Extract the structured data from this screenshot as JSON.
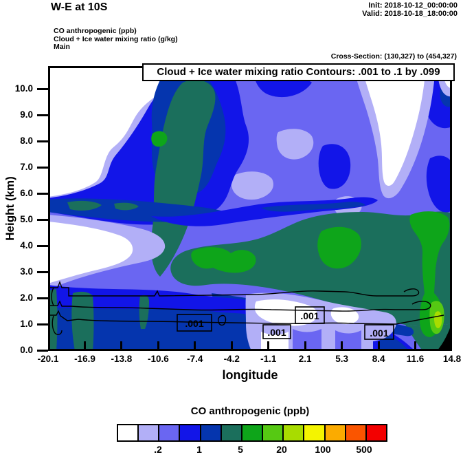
{
  "header": {
    "title": "W-E at 10S",
    "init_line": "Init: 2018-10-12_00:00:00",
    "valid_line": "Valid: 2018-10-18_18:00:00",
    "field_line_1": "CO anthropogenic   (ppb)",
    "field_line_2": "Cloud + Ice water mixing ratio   (g/kg)",
    "field_line_3": "Main",
    "cross_section": "Cross-Section: (130,327) to (454,327)"
  },
  "chart_data": {
    "type": "filled-contour vertical cross-section with line contour overlay",
    "title": "Cloud + Ice water mixing ratio Contours: .001 to .1 by .099",
    "xlabel": "longitude",
    "ylabel": "Height (km)",
    "x_ticks": [
      "-20.1",
      "-16.9",
      "-13.8",
      "-10.6",
      "-7.4",
      "-4.2",
      "-1.1",
      "2.1",
      "5.3",
      "8.4",
      "11.6",
      "14.8"
    ],
    "y_ticks": [
      "0.0",
      "1.0",
      "2.0",
      "3.0",
      "4.0",
      "5.0",
      "6.0",
      "7.0",
      "8.0",
      "9.0",
      "10.0"
    ],
    "xlim": [
      -20.1,
      14.8
    ],
    "ylim_km": [
      0.0,
      10.9
    ],
    "fill_field": "CO anthropogenic (ppb)",
    "line_field": "Cloud + Ice water mixing ratio (g/kg)",
    "line_contour_label": ".001",
    "line_contour_levels_text": ".001 to .1 by .099",
    "grid": false,
    "legend_position": "bottom",
    "legend": {
      "title": "CO anthropogenic  (ppb)",
      "colors": [
        "#ffffff",
        "#b2aff7",
        "#6a66f2",
        "#1215e8",
        "#0535ae",
        "#1b6f5c",
        "#0ea51a",
        "#56c913",
        "#a8dc00",
        "#f4f400",
        "#fbab00",
        "#fa5500",
        "#f30000"
      ],
      "tick_labels": [
        ".2",
        "1",
        "5",
        "20",
        "100",
        "500"
      ],
      "tick_boundary_indices": [
        2,
        4,
        6,
        8,
        10,
        12
      ]
    }
  }
}
